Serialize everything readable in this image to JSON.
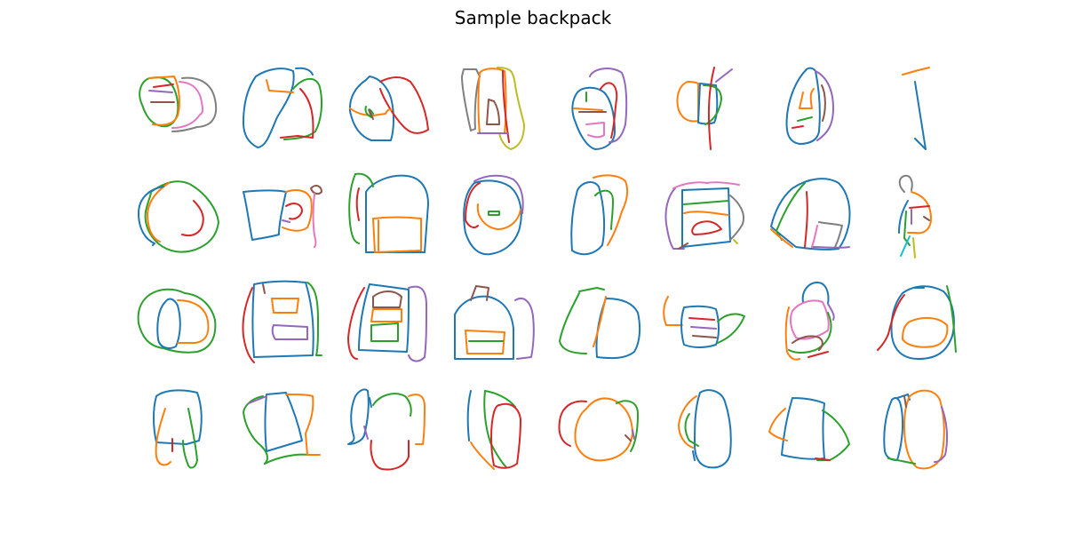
{
  "title": "Sample backpack",
  "colors": {
    "blue": "#1f77b4",
    "orange": "#ff7f0e",
    "green": "#2ca02c",
    "red": "#d62728",
    "purple": "#9467bd",
    "brown": "#8c564b",
    "pink": "#e377c2",
    "gray": "#7f7f7f",
    "olive": "#bcbd22",
    "cyan": "#17becf"
  },
  "grid": {
    "rows": 4,
    "columns": 8,
    "sketch_count": 32
  }
}
